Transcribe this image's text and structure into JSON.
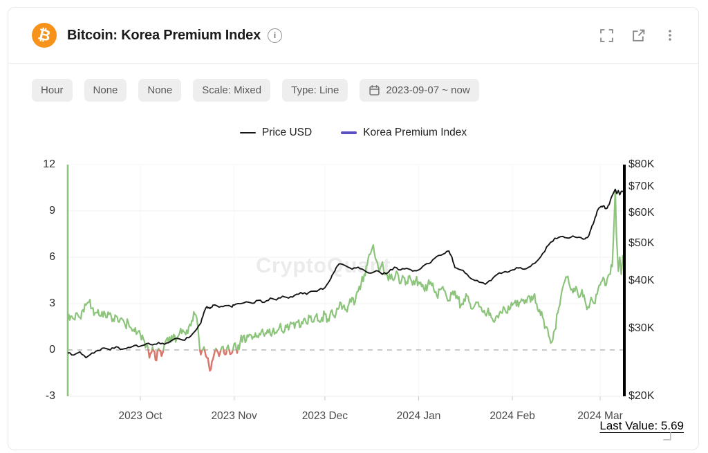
{
  "header": {
    "title": "Bitcoin: Korea Premium Index",
    "coin_symbol": "₿",
    "brand_color": "#F7931A",
    "icons": [
      "fullscreen-icon",
      "open-in-new-icon",
      "kebab-menu-icon"
    ],
    "info_glyph": "i"
  },
  "toolbar": {
    "chips": [
      {
        "label": "Hour"
      },
      {
        "label": "None"
      },
      {
        "label": "None"
      },
      {
        "label": "Scale: Mixed"
      },
      {
        "label": "Type: Line"
      },
      {
        "label": "2023-09-07 ~ now",
        "icon": "calendar-icon"
      }
    ]
  },
  "legend": [
    {
      "label": "Price USD",
      "color": "#141414",
      "thickness": 2
    },
    {
      "label": "Korea Premium Index",
      "color": "#5a4fc0",
      "thickness": 4
    }
  ],
  "watermark": "CryptoQuant",
  "footer": {
    "last_value_label": "Last Value: 5.69",
    "resize_icon": "resize-handle-icon"
  },
  "chart_data": {
    "type": "line",
    "title": "Bitcoin: Korea Premium Index",
    "x_range": {
      "start": "2023-09-07",
      "end": "now",
      "days": 184
    },
    "x_ticks": [
      {
        "day": 24,
        "label": "2023 Oct"
      },
      {
        "day": 55,
        "label": "2023 Nov"
      },
      {
        "day": 85,
        "label": "2023 Dec"
      },
      {
        "day": 116,
        "label": "2024 Jan"
      },
      {
        "day": 147,
        "label": "2024 Feb"
      },
      {
        "day": 176,
        "label": "2024 Mar"
      }
    ],
    "left_axis": {
      "ticks": [
        12,
        9,
        6,
        3,
        0,
        -3
      ],
      "range": [
        -3,
        12
      ],
      "zero_line_dashed": true
    },
    "right_axis": {
      "scale": "log",
      "ticks": [
        "$80K",
        "$70K",
        "$60K",
        "$50K",
        "$40K",
        "$30K",
        "$20K"
      ],
      "tick_values": [
        80000,
        70000,
        60000,
        50000,
        40000,
        30000,
        20000
      ],
      "range": [
        20000,
        80000
      ]
    },
    "last_value": 5.69,
    "series": [
      {
        "name": "Price USD",
        "axis": "right",
        "unit": "USD thousands",
        "color": "#141414",
        "points": [
          [
            0,
            25.9
          ],
          [
            2,
            25.6
          ],
          [
            4,
            26.1
          ],
          [
            6,
            25.2
          ],
          [
            8,
            25.9
          ],
          [
            10,
            26.3
          ],
          [
            12,
            26.7
          ],
          [
            14,
            26.4
          ],
          [
            16,
            26.9
          ],
          [
            18,
            26.5
          ],
          [
            20,
            26.8
          ],
          [
            22,
            27.1
          ],
          [
            24,
            27.0
          ],
          [
            26,
            27.4
          ],
          [
            28,
            27.2
          ],
          [
            30,
            27.6
          ],
          [
            32,
            27.3
          ],
          [
            34,
            27.8
          ],
          [
            36,
            28.3
          ],
          [
            38,
            28.0
          ],
          [
            40,
            28.4
          ],
          [
            42,
            29.5
          ],
          [
            44,
            31.0
          ],
          [
            45,
            33.0
          ],
          [
            46,
            34.2
          ],
          [
            47,
            33.8
          ],
          [
            48,
            34.5
          ],
          [
            50,
            34.1
          ],
          [
            52,
            34.4
          ],
          [
            54,
            34.2
          ],
          [
            55,
            34.5
          ],
          [
            57,
            34.8
          ],
          [
            59,
            35.2
          ],
          [
            61,
            34.9
          ],
          [
            63,
            35.5
          ],
          [
            65,
            35.1
          ],
          [
            67,
            36.0
          ],
          [
            69,
            35.6
          ],
          [
            71,
            36.4
          ],
          [
            73,
            36.0
          ],
          [
            75,
            36.6
          ],
          [
            77,
            37.2
          ],
          [
            79,
            36.8
          ],
          [
            81,
            37.5
          ],
          [
            83,
            37.8
          ],
          [
            85,
            38.3
          ],
          [
            87,
            40.5
          ],
          [
            88,
            42.0
          ],
          [
            89,
            43.5
          ],
          [
            90,
            44.2
          ],
          [
            92,
            43.6
          ],
          [
            94,
            42.8
          ],
          [
            96,
            43.3
          ],
          [
            98,
            42.5
          ],
          [
            100,
            41.8
          ],
          [
            102,
            42.4
          ],
          [
            104,
            41.5
          ],
          [
            106,
            42.0
          ],
          [
            108,
            43.3
          ],
          [
            110,
            42.6
          ],
          [
            112,
            43.0
          ],
          [
            114,
            42.3
          ],
          [
            116,
            42.6
          ],
          [
            118,
            43.9
          ],
          [
            120,
            44.5
          ],
          [
            122,
            46.2
          ],
          [
            124,
            46.8
          ],
          [
            126,
            47.7
          ],
          [
            127,
            46.0
          ],
          [
            128,
            43.2
          ],
          [
            130,
            42.6
          ],
          [
            132,
            41.5
          ],
          [
            134,
            40.2
          ],
          [
            136,
            39.6
          ],
          [
            138,
            39.1
          ],
          [
            140,
            40.0
          ],
          [
            142,
            41.5
          ],
          [
            144,
            42.0
          ],
          [
            146,
            42.2
          ],
          [
            147,
            42.6
          ],
          [
            149,
            43.1
          ],
          [
            151,
            42.8
          ],
          [
            153,
            43.5
          ],
          [
            155,
            44.8
          ],
          [
            157,
            47.0
          ],
          [
            159,
            49.5
          ],
          [
            161,
            51.5
          ],
          [
            163,
            52.0
          ],
          [
            165,
            51.6
          ],
          [
            167,
            52.2
          ],
          [
            169,
            51.8
          ],
          [
            171,
            51.3
          ],
          [
            172,
            51.9
          ],
          [
            173,
            54.5
          ],
          [
            174,
            57.0
          ],
          [
            175,
            60.5
          ],
          [
            176,
            62.0
          ],
          [
            177,
            62.5
          ],
          [
            178,
            61.5
          ],
          [
            179,
            63.0
          ],
          [
            180,
            66.5
          ],
          [
            181,
            69.0
          ],
          [
            181.5,
            67.2
          ],
          [
            182,
            68.5
          ],
          [
            182.5,
            66.8
          ],
          [
            183,
            68.2
          ],
          [
            184,
            67.5
          ]
        ]
      },
      {
        "name": "Korea Premium Index",
        "axis": "left",
        "unit": "%",
        "color_positive": "#8cc47c",
        "color_negative": "#d9776c",
        "start_spike": {
          "day": 0,
          "from": -3,
          "to": 12
        },
        "points": [
          [
            0,
            1.9
          ],
          [
            1,
            2.2
          ],
          [
            2,
            2.0
          ],
          [
            3,
            2.4
          ],
          [
            4,
            2.1
          ],
          [
            5,
            2.6
          ],
          [
            6,
            2.9
          ],
          [
            7,
            3.1
          ],
          [
            8,
            2.7
          ],
          [
            9,
            2.4
          ],
          [
            10,
            2.6
          ],
          [
            11,
            2.2
          ],
          [
            12,
            2.5
          ],
          [
            13,
            2.1
          ],
          [
            14,
            2.4
          ],
          [
            15,
            2.0
          ],
          [
            16,
            2.2
          ],
          [
            17,
            1.8
          ],
          [
            18,
            2.0
          ],
          [
            19,
            1.6
          ],
          [
            20,
            1.8
          ],
          [
            21,
            1.4
          ],
          [
            22,
            1.2
          ],
          [
            23,
            1.1
          ],
          [
            24,
            1.0
          ],
          [
            25,
            0.7
          ],
          [
            26,
            0.3
          ],
          [
            27,
            -0.5
          ],
          [
            28,
            0.2
          ],
          [
            29,
            -0.65
          ],
          [
            30,
            0.1
          ],
          [
            31,
            -0.4
          ],
          [
            32,
            0.4
          ],
          [
            33,
            0.8
          ],
          [
            34,
            0.5
          ],
          [
            35,
            1.0
          ],
          [
            36,
            0.7
          ],
          [
            37,
            1.1
          ],
          [
            38,
            1.3
          ],
          [
            39,
            1.0
          ],
          [
            40,
            1.5
          ],
          [
            41,
            1.9
          ],
          [
            42,
            2.3
          ],
          [
            43,
            1.5
          ],
          [
            44,
            -0.3
          ],
          [
            45,
            0.2
          ],
          [
            46,
            -0.5
          ],
          [
            47,
            -1.35
          ],
          [
            48,
            -0.6
          ],
          [
            49,
            0.1
          ],
          [
            50,
            -0.4
          ],
          [
            51,
            0.2
          ],
          [
            52,
            -0.3
          ],
          [
            53,
            0.3
          ],
          [
            54,
            -0.25
          ],
          [
            55,
            0.4
          ],
          [
            56,
            -0.2
          ],
          [
            57,
            0.5
          ],
          [
            58,
            0.9
          ],
          [
            59,
            0.6
          ],
          [
            60,
            1.0
          ],
          [
            61,
            0.7
          ],
          [
            62,
            1.1
          ],
          [
            63,
            0.8
          ],
          [
            64,
            1.2
          ],
          [
            65,
            0.9
          ],
          [
            66,
            1.3
          ],
          [
            67,
            1.0
          ],
          [
            68,
            1.4
          ],
          [
            69,
            1.1
          ],
          [
            70,
            1.5
          ],
          [
            71,
            1.2
          ],
          [
            72,
            1.6
          ],
          [
            73,
            1.3
          ],
          [
            74,
            1.7
          ],
          [
            75,
            1.4
          ],
          [
            76,
            1.8
          ],
          [
            77,
            1.5
          ],
          [
            78,
            2.0
          ],
          [
            79,
            1.7
          ],
          [
            80,
            2.1
          ],
          [
            81,
            1.8
          ],
          [
            82,
            2.2
          ],
          [
            83,
            1.9
          ],
          [
            84,
            2.1
          ],
          [
            85,
            2.3
          ],
          [
            86,
            2.0
          ],
          [
            87,
            2.5
          ],
          [
            88,
            2.2
          ],
          [
            89,
            2.7
          ],
          [
            90,
            3.1
          ],
          [
            91,
            2.8
          ],
          [
            92,
            2.6
          ],
          [
            93,
            3.0
          ],
          [
            94,
            3.4
          ],
          [
            95,
            3.1
          ],
          [
            96,
            3.8
          ],
          [
            97,
            4.3
          ],
          [
            98,
            4.9
          ],
          [
            99,
            5.5
          ],
          [
            100,
            6.2
          ],
          [
            101,
            6.8
          ],
          [
            102,
            5.8
          ],
          [
            103,
            5.1
          ],
          [
            104,
            5.7
          ],
          [
            105,
            4.9
          ],
          [
            106,
            4.5
          ],
          [
            107,
            4.9
          ],
          [
            108,
            4.6
          ],
          [
            109,
            5.0
          ],
          [
            110,
            4.3
          ],
          [
            111,
            4.7
          ],
          [
            112,
            4.4
          ],
          [
            113,
            4.8
          ],
          [
            114,
            4.2
          ],
          [
            115,
            4.5
          ],
          [
            116,
            4.4
          ],
          [
            117,
            4.1
          ],
          [
            118,
            3.8
          ],
          [
            119,
            4.2
          ],
          [
            120,
            4.4
          ],
          [
            121,
            3.9
          ],
          [
            122,
            3.5
          ],
          [
            123,
            3.9
          ],
          [
            124,
            4.1
          ],
          [
            125,
            3.6
          ],
          [
            126,
            3.2
          ],
          [
            127,
            3.6
          ],
          [
            128,
            3.8
          ],
          [
            129,
            3.3
          ],
          [
            130,
            2.9
          ],
          [
            131,
            3.3
          ],
          [
            132,
            3.5
          ],
          [
            133,
            3.0
          ],
          [
            134,
            2.7
          ],
          [
            135,
            3.1
          ],
          [
            136,
            2.8
          ],
          [
            137,
            2.5
          ],
          [
            138,
            2.3
          ],
          [
            139,
            2.7
          ],
          [
            140,
            2.1
          ],
          [
            141,
            1.8
          ],
          [
            142,
            2.2
          ],
          [
            143,
            2.5
          ],
          [
            144,
            2.8
          ],
          [
            145,
            2.4
          ],
          [
            146,
            2.6
          ],
          [
            147,
            2.9
          ],
          [
            148,
            3.2
          ],
          [
            149,
            2.8
          ],
          [
            150,
            3.3
          ],
          [
            151,
            3.0
          ],
          [
            152,
            3.4
          ],
          [
            153,
            3.1
          ],
          [
            154,
            3.5
          ],
          [
            155,
            3.0
          ],
          [
            156,
            2.6
          ],
          [
            157,
            2.1
          ],
          [
            158,
            1.5
          ],
          [
            159,
            0.9
          ],
          [
            160,
            0.5
          ],
          [
            161,
            1.3
          ],
          [
            162,
            2.4
          ],
          [
            163,
            3.4
          ],
          [
            164,
            4.3
          ],
          [
            165,
            4.7
          ],
          [
            166,
            4.1
          ],
          [
            167,
            3.7
          ],
          [
            168,
            4.1
          ],
          [
            169,
            3.4
          ],
          [
            170,
            3.9
          ],
          [
            171,
            3.2
          ],
          [
            172,
            2.8
          ],
          [
            173,
            3.4
          ],
          [
            174,
            3.0
          ],
          [
            175,
            3.6
          ],
          [
            176,
            4.2
          ],
          [
            177,
            4.7
          ],
          [
            178,
            4.2
          ],
          [
            179,
            4.9
          ],
          [
            180,
            5.4
          ],
          [
            180.6,
            8.2
          ],
          [
            181,
            10.4
          ],
          [
            181.4,
            7.4
          ],
          [
            182,
            5.1
          ],
          [
            182.5,
            6.0
          ],
          [
            183,
            4.9
          ],
          [
            183.5,
            6.1
          ],
          [
            184,
            5.69
          ]
        ]
      }
    ]
  }
}
